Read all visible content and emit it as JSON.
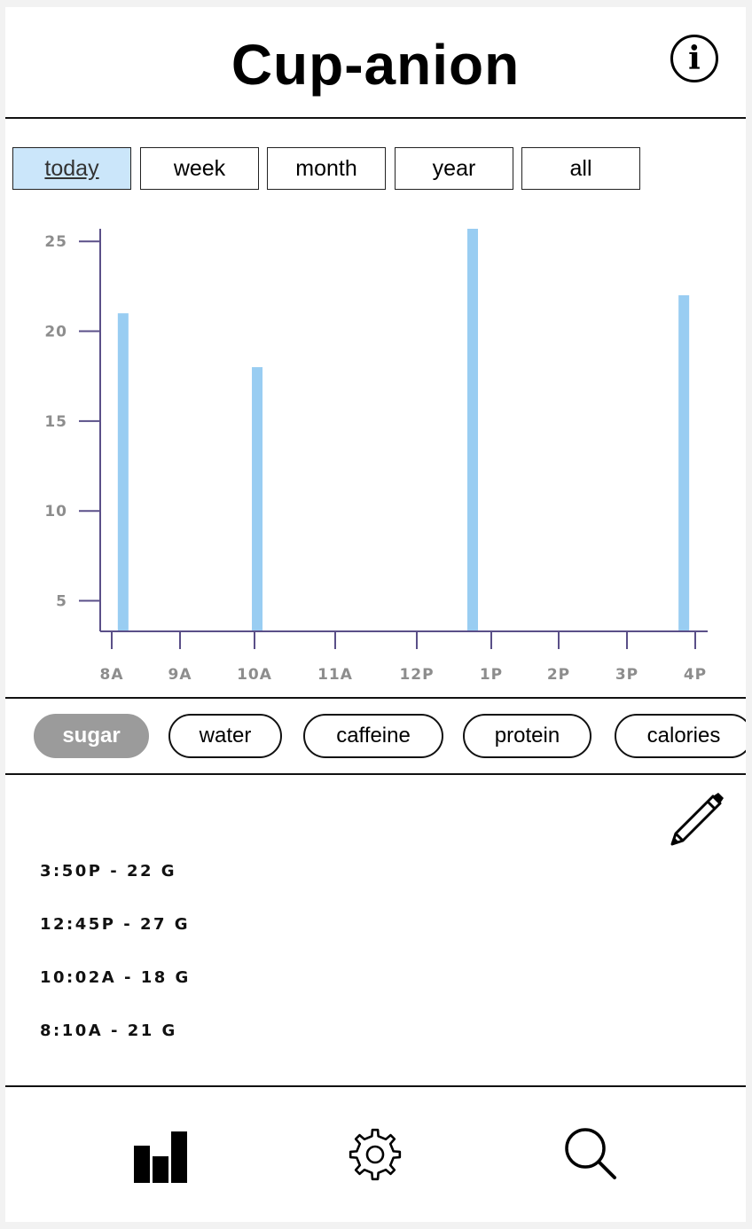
{
  "app": {
    "title": "Cup-anion"
  },
  "range_tabs": [
    {
      "label": "today",
      "active": true
    },
    {
      "label": "week",
      "active": false
    },
    {
      "label": "month",
      "active": false
    },
    {
      "label": "year",
      "active": false
    },
    {
      "label": "all",
      "active": false
    }
  ],
  "chart_data": {
    "type": "bar",
    "x_ticks": [
      "8A",
      "9A",
      "10A",
      "11A",
      "12P",
      "1P",
      "2P",
      "3P",
      "4P"
    ],
    "y_ticks": [
      5,
      10,
      15,
      20,
      25
    ],
    "ylim": [
      3.3,
      25.7
    ],
    "bar_color": "#99cdf2",
    "axis_color": "#5a4f88",
    "points": [
      {
        "x": "8:10A",
        "value": 21
      },
      {
        "x": "10:02A",
        "value": 18
      },
      {
        "x": "12:45P",
        "value": 27
      },
      {
        "x": "3:50P",
        "value": 22
      }
    ]
  },
  "nutrients": [
    {
      "label": "sugar",
      "active": true
    },
    {
      "label": "water",
      "active": false
    },
    {
      "label": "caffeine",
      "active": false
    },
    {
      "label": "protein",
      "active": false
    },
    {
      "label": "calories",
      "active": false
    }
  ],
  "entries": [
    "3:50P -  22 G",
    "12:45P - 27 G",
    "10:02A - 18 G",
    "8:10A - 21 G"
  ],
  "icons": {
    "info": "info-icon",
    "edit": "pencil-icon",
    "nav": [
      "bar-chart-icon",
      "gear-icon",
      "search-icon"
    ]
  },
  "colors": {
    "active_tab_bg": "#cbe6fa",
    "active_chip_bg": "#9b9b9b"
  }
}
